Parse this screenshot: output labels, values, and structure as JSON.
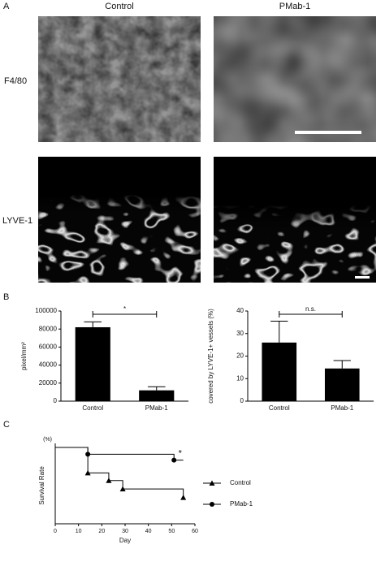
{
  "panels": {
    "a": "A",
    "b": "B",
    "c": "C"
  },
  "images": {
    "columns": [
      "Control",
      "PMab-1"
    ],
    "rows": [
      "F4/80",
      "LYVE-1"
    ]
  },
  "chart_data": [
    {
      "type": "bar",
      "categories": [
        "Control",
        "PMab-1"
      ],
      "values": [
        82000,
        12000
      ],
      "errors": [
        6000,
        4000
      ],
      "color": "#000000",
      "ylabel": "pixel/mm²",
      "ylim": [
        0,
        100000
      ],
      "yticks": [
        0,
        20000,
        40000,
        60000,
        80000,
        100000
      ],
      "annotation": "*"
    },
    {
      "type": "bar",
      "categories": [
        "Control",
        "PMab-1"
      ],
      "values": [
        26,
        14.5
      ],
      "errors": [
        9.5,
        3.5
      ],
      "color": "#000000",
      "ylabel": "covered by LYVE-1+ vessels (%)",
      "ylim": [
        0,
        40
      ],
      "yticks": [
        0,
        10,
        20,
        30,
        40
      ],
      "annotation": "n.s."
    },
    {
      "type": "line",
      "xlabel": "Day",
      "ylabel": "Survival Rate",
      "y_unit": "(%)",
      "xlim": [
        0,
        60
      ],
      "xticks": [
        0,
        10,
        20,
        30,
        40,
        50,
        60
      ],
      "ylim": [
        10,
        100
      ],
      "annotation": "*",
      "series": [
        {
          "name": "Control",
          "color": "#000000",
          "marker": "triangle",
          "x": [
            0,
            14,
            23,
            29,
            55
          ],
          "values": [
            100,
            70,
            61,
            51,
            41
          ]
        },
        {
          "name": "PMab-1",
          "color": "#000000",
          "marker": "circle",
          "x": [
            0,
            14,
            51,
            55
          ],
          "values": [
            100,
            92,
            85,
            85
          ]
        }
      ]
    }
  ]
}
